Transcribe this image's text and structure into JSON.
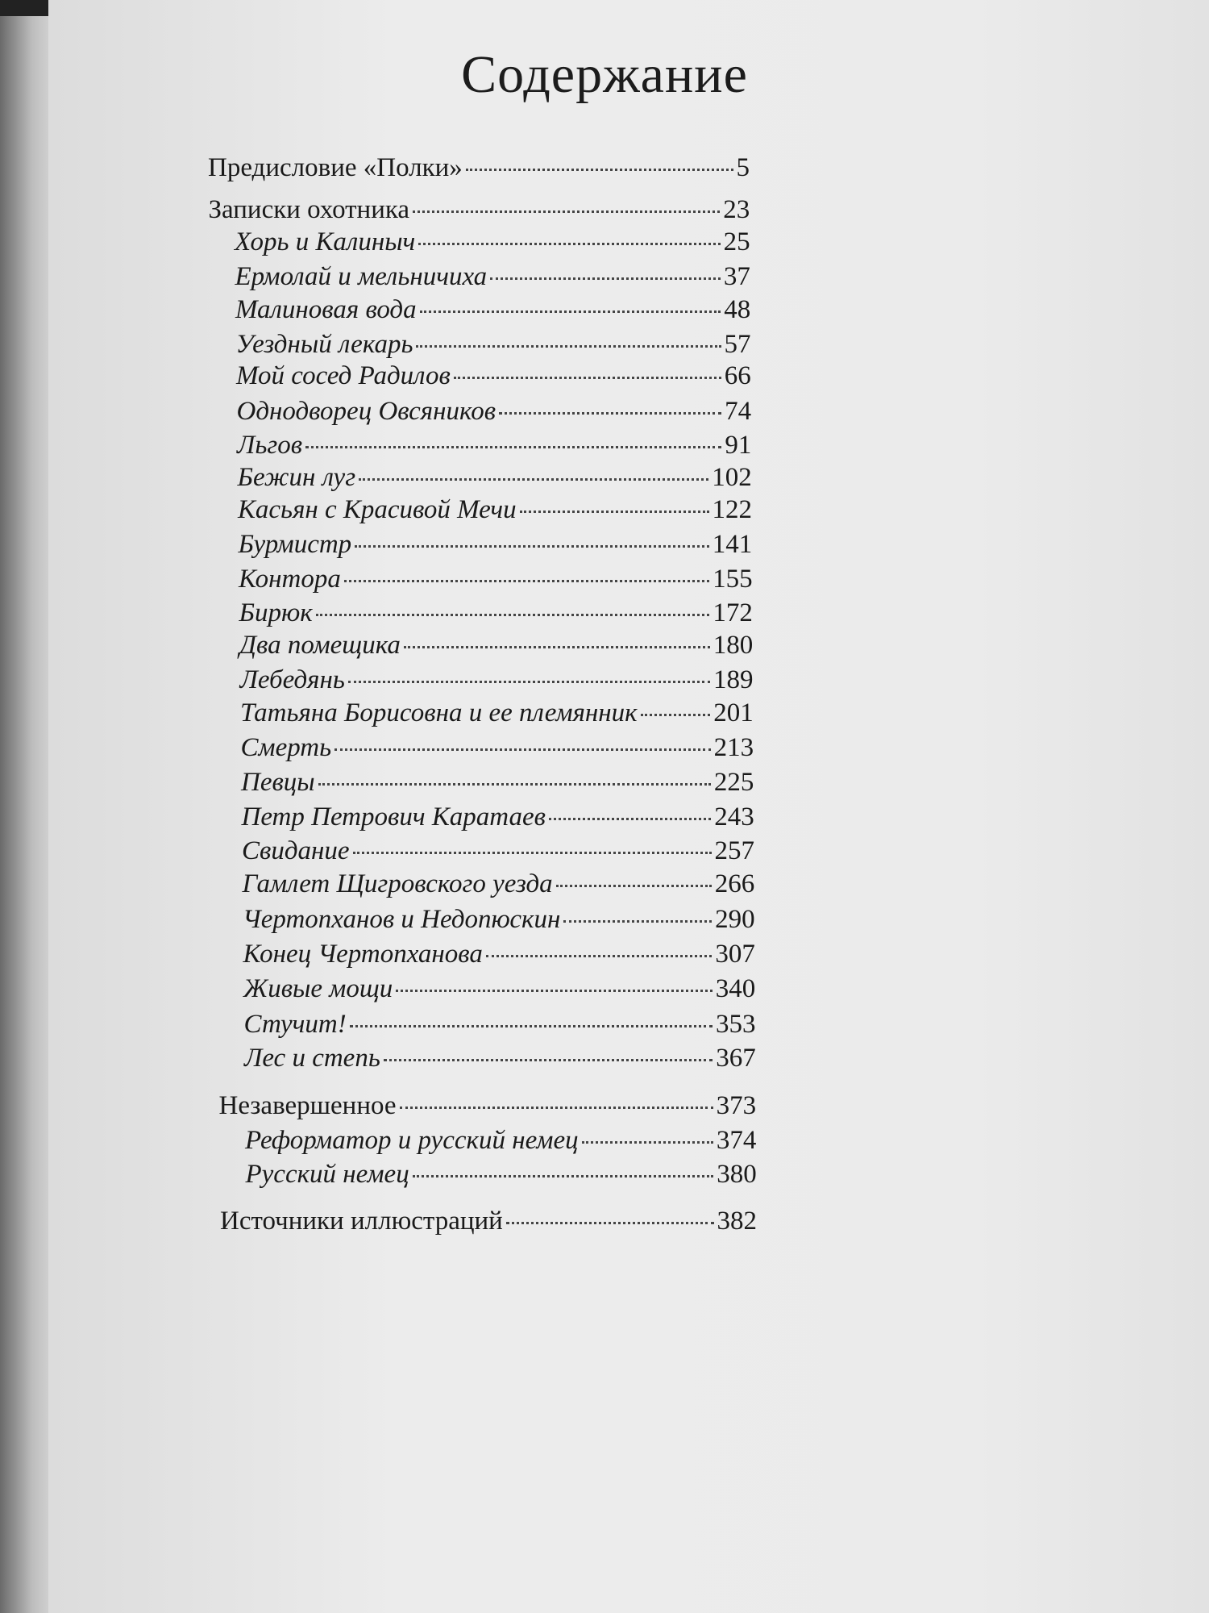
{
  "title": "Содержание",
  "entries": [
    {
      "title": "Предисловие «Полки»",
      "page": "5",
      "level": 0
    },
    {
      "title": "Записки охотника",
      "page": "23",
      "level": 0
    },
    {
      "title": "Хорь и Калиныч",
      "page": "25",
      "level": 1
    },
    {
      "title": "Ермолай и мельничиха",
      "page": "37",
      "level": 1
    },
    {
      "title": "Малиновая вода",
      "page": "48",
      "level": 1
    },
    {
      "title": "Уездный лекарь",
      "page": "57",
      "level": 1
    },
    {
      "title": "Мой сосед Радилов",
      "page": "66",
      "level": 1
    },
    {
      "title": "Однодворец Овсяников",
      "page": "74",
      "level": 1
    },
    {
      "title": "Льгов",
      "page": "91",
      "level": 1
    },
    {
      "title": "Бежин луг",
      "page": "102",
      "level": 1
    },
    {
      "title": "Касьян с Красивой Мечи",
      "page": "122",
      "level": 1
    },
    {
      "title": "Бурмистр",
      "page": "141",
      "level": 1
    },
    {
      "title": "Контора",
      "page": "155",
      "level": 1
    },
    {
      "title": "Бирюк",
      "page": "172",
      "level": 1
    },
    {
      "title": "Два помещика",
      "page": "180",
      "level": 1
    },
    {
      "title": "Лебедянь",
      "page": "189",
      "level": 1
    },
    {
      "title": "Татьяна Борисовна и ее племянник",
      "page": "201",
      "level": 1
    },
    {
      "title": "Смерть",
      "page": "213",
      "level": 1
    },
    {
      "title": "Певцы",
      "page": "225",
      "level": 1
    },
    {
      "title": "Петр Петрович Каратаев",
      "page": "243",
      "level": 1
    },
    {
      "title": "Свидание",
      "page": "257",
      "level": 1
    },
    {
      "title": "Гамлет Щигровского уезда",
      "page": "266",
      "level": 1
    },
    {
      "title": "Чертопханов и Недопюскин",
      "page": "290",
      "level": 1
    },
    {
      "title": "Конец Чертопханова",
      "page": "307",
      "level": 1
    },
    {
      "title": "Живые мощи",
      "page": "340",
      "level": 1
    },
    {
      "title": "Стучит!",
      "page": "353",
      "level": 1
    },
    {
      "title": "Лес и степь",
      "page": "367",
      "level": 1
    },
    {
      "title": "Незавершенное",
      "page": "373",
      "level": 0
    },
    {
      "title": "Реформатор и русский немец",
      "page": "374",
      "level": 1
    },
    {
      "title": "Русский немец",
      "page": "380",
      "level": 1
    },
    {
      "title": "Источники иллюстраций",
      "page": "382",
      "level": 0
    }
  ]
}
